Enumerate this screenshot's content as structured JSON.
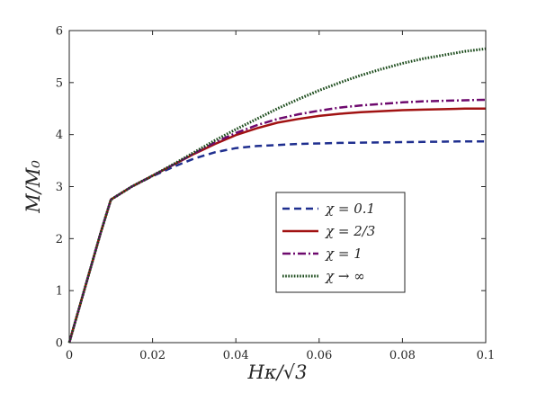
{
  "chart_data": {
    "type": "line",
    "title": "",
    "xlabel": "Hκ/√3",
    "ylabel": "M/M₀",
    "xlim": [
      0,
      0.1
    ],
    "ylim": [
      0,
      6
    ],
    "xticks": [
      0,
      0.02,
      0.04,
      0.06,
      0.08,
      0.1
    ],
    "xtick_labels": [
      "0",
      "0.02",
      "0.04",
      "0.06",
      "0.08",
      "0.1"
    ],
    "yticks": [
      0,
      1,
      2,
      3,
      4,
      5,
      6
    ],
    "ytick_labels": [
      "0",
      "1",
      "2",
      "3",
      "4",
      "5",
      "6"
    ],
    "grid": false,
    "legend_position": "center-right",
    "x": [
      0,
      0.0025,
      0.005,
      0.0075,
      0.01,
      0.015,
      0.02,
      0.025,
      0.03,
      0.035,
      0.04,
      0.045,
      0.05,
      0.055,
      0.06,
      0.065,
      0.07,
      0.075,
      0.08,
      0.085,
      0.09,
      0.095,
      0.1
    ],
    "series": [
      {
        "name": "χ = 0.1",
        "color": "#1f2f8f",
        "dash": "dashed",
        "values": [
          0,
          0.7,
          1.4,
          2.1,
          2.75,
          3.0,
          3.2,
          3.38,
          3.54,
          3.66,
          3.74,
          3.78,
          3.8,
          3.82,
          3.83,
          3.84,
          3.845,
          3.85,
          3.855,
          3.86,
          3.865,
          3.87,
          3.87
        ]
      },
      {
        "name": "χ = 2/3",
        "color": "#a11212",
        "dash": "solid",
        "values": [
          0,
          0.7,
          1.4,
          2.1,
          2.75,
          3.0,
          3.21,
          3.42,
          3.63,
          3.82,
          3.99,
          4.12,
          4.23,
          4.3,
          4.36,
          4.4,
          4.43,
          4.45,
          4.47,
          4.48,
          4.49,
          4.5,
          4.5
        ]
      },
      {
        "name": "χ = 1",
        "color": "#6e0a6e",
        "dash": "dashdot",
        "values": [
          0,
          0.7,
          1.4,
          2.1,
          2.75,
          3.0,
          3.21,
          3.42,
          3.64,
          3.85,
          4.03,
          4.18,
          4.3,
          4.39,
          4.46,
          4.52,
          4.56,
          4.59,
          4.62,
          4.64,
          4.65,
          4.66,
          4.67
        ]
      },
      {
        "name": "χ → ∞",
        "color": "#1a4a1a",
        "dash": "dotted",
        "values": [
          0,
          0.7,
          1.4,
          2.1,
          2.75,
          3.0,
          3.21,
          3.43,
          3.66,
          3.89,
          4.1,
          4.3,
          4.5,
          4.68,
          4.85,
          5.0,
          5.14,
          5.26,
          5.37,
          5.46,
          5.53,
          5.6,
          5.65
        ]
      }
    ]
  }
}
